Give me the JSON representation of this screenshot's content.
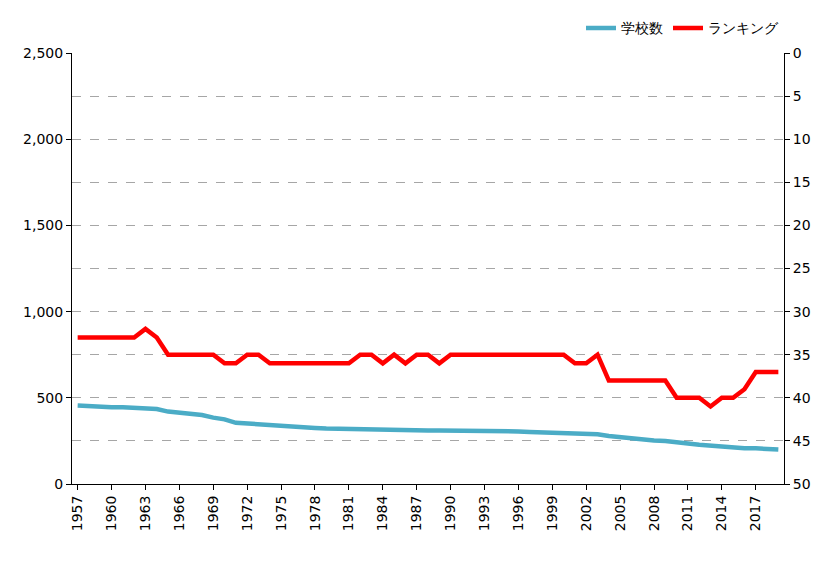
{
  "chart_data": {
    "type": "line",
    "x": [
      1957,
      1958,
      1959,
      1960,
      1961,
      1962,
      1963,
      1964,
      1965,
      1966,
      1967,
      1968,
      1969,
      1970,
      1971,
      1972,
      1973,
      1974,
      1975,
      1976,
      1977,
      1978,
      1979,
      1980,
      1981,
      1982,
      1983,
      1984,
      1985,
      1986,
      1987,
      1988,
      1989,
      1990,
      1991,
      1992,
      1993,
      1994,
      1995,
      1996,
      1997,
      1998,
      1999,
      2000,
      2001,
      2002,
      2003,
      2004,
      2005,
      2006,
      2007,
      2008,
      2009,
      2010,
      2011,
      2012,
      2013,
      2014,
      2015,
      2016,
      2017,
      2018,
      2019
    ],
    "series": [
      {
        "name": "学校数",
        "color": "#4bacc6",
        "values": [
          455,
          450,
          450,
          445,
          445,
          440,
          440,
          435,
          420,
          415,
          410,
          400,
          385,
          375,
          355,
          350,
          345,
          340,
          335,
          333,
          328,
          325,
          322,
          320,
          320,
          318,
          316,
          315,
          315,
          313,
          310,
          310,
          310,
          310,
          308,
          306,
          305,
          305,
          305,
          305,
          302,
          300,
          300,
          300,
          295,
          290,
          288,
          278,
          270,
          265,
          258,
          252,
          250,
          245,
          235,
          228,
          222,
          217,
          212,
          208,
          207,
          205,
          200
        ]
      },
      {
        "name": "ランキング",
        "color": "#ff0000",
        "axis": "y2",
        "values": [
          33,
          33,
          33,
          33,
          33,
          33,
          32,
          33,
          35,
          35,
          35,
          35,
          35,
          36,
          36,
          35,
          35,
          36,
          36,
          36,
          36,
          36,
          36,
          36,
          36,
          35,
          35,
          36,
          35,
          36,
          35,
          35,
          36,
          35,
          35,
          35,
          35,
          35,
          35,
          35,
          35,
          35,
          35,
          35,
          36,
          36,
          35,
          38,
          38,
          38,
          38,
          38,
          38,
          40,
          40,
          40,
          41,
          40,
          40,
          39,
          37,
          37,
          37
        ]
      }
    ],
    "xlim": [
      1956.5,
      2019.5
    ],
    "xticks": [
      1957,
      1960,
      1963,
      1966,
      1969,
      1972,
      1975,
      1978,
      1981,
      1984,
      1987,
      1990,
      1993,
      1996,
      1999,
      2002,
      2005,
      2008,
      2011,
      2014,
      2017
    ],
    "ylim": [
      0,
      2500
    ],
    "yticks": [
      0,
      500,
      {
        "value": 1000,
        "label": "1,000"
      },
      {
        "value": 1500,
        "label": "1,500"
      },
      {
        "value": 2000,
        "label": "2,000"
      },
      {
        "value": 2500,
        "label": "2,500"
      }
    ],
    "y2lim": [
      50,
      0
    ],
    "y2ticks": [
      0,
      5,
      10,
      15,
      20,
      25,
      30,
      35,
      40,
      45,
      50
    ],
    "grid": true,
    "legend": "top right"
  }
}
